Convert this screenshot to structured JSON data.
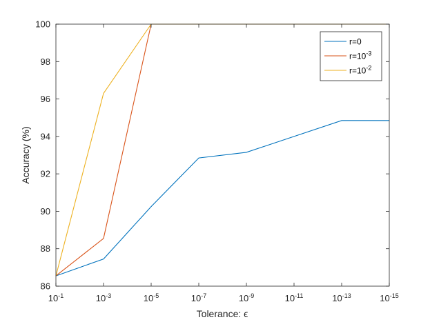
{
  "chart_data": {
    "type": "line",
    "title": "",
    "xlabel": "Tolerance: ϵ",
    "ylabel": "Accuracy (%)",
    "x_ticks": [
      {
        "base": "10",
        "exp": "-1"
      },
      {
        "base": "10",
        "exp": "-3"
      },
      {
        "base": "10",
        "exp": "-5"
      },
      {
        "base": "10",
        "exp": "-7"
      },
      {
        "base": "10",
        "exp": "-9"
      },
      {
        "base": "10",
        "exp": "-11"
      },
      {
        "base": "10",
        "exp": "-13"
      },
      {
        "base": "10",
        "exp": "-15"
      }
    ],
    "x": [
      0.1,
      0.001,
      1e-05,
      1e-07,
      1e-09,
      1e-11,
      1e-13,
      1e-15
    ],
    "x_scale": "log",
    "x_reversed": true,
    "xlim": [
      0.1,
      1e-15
    ],
    "ylim": [
      86,
      100
    ],
    "y_ticks": [
      86,
      88,
      90,
      92,
      94,
      96,
      98,
      100
    ],
    "grid": false,
    "legend_position": "top-right",
    "series": [
      {
        "name": "r=0",
        "name_base": "r=0",
        "name_exp": "",
        "color": "#0072BD",
        "values": [
          86.55,
          87.45,
          90.25,
          92.85,
          93.15,
          94.0,
          94.85,
          94.85
        ]
      },
      {
        "name": "r=10-3",
        "name_base": "r=10",
        "name_exp": "-3",
        "color": "#D95319",
        "values": [
          86.55,
          88.55,
          100,
          100,
          100,
          100,
          100,
          100
        ]
      },
      {
        "name": "r=10-2",
        "name_base": "r=10",
        "name_exp": "-2",
        "color": "#EDB120",
        "values": [
          86.55,
          96.3,
          100,
          100,
          100,
          100,
          100,
          100
        ]
      }
    ]
  }
}
